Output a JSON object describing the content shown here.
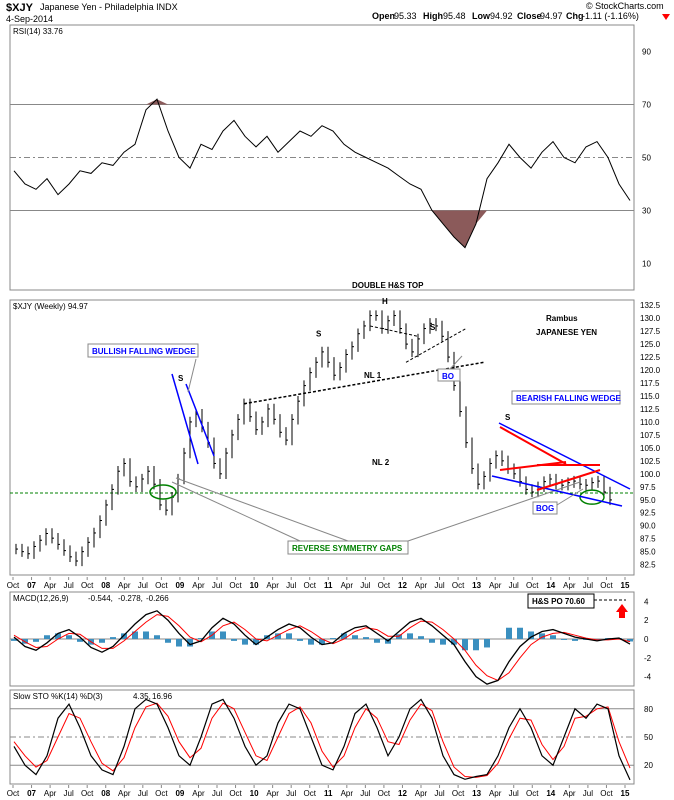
{
  "header": {
    "symbol": "$XJY",
    "name": "Japanese Yen - Philadelphia INDX",
    "date": "4-Sep-2014",
    "open_label": "Open",
    "open": "95.33",
    "high_label": "High",
    "high": "95.48",
    "low_label": "Low",
    "low": "94.92",
    "close_label": "Close",
    "close": "94.97",
    "chg_label": "Chg",
    "chg": "-1.11 (-1.16%)",
    "watermark": "© StockCharts.com"
  },
  "colors": {
    "price_bars": "#000000",
    "wedge_lines": "#0000ff",
    "triangle": "#ff0000",
    "gap_line": "#008000",
    "rsi_fill": "#8b5a5a",
    "macd_hist": "#3a8fbf",
    "signal": "#ff0000"
  },
  "chart_data": [
    {
      "type": "line",
      "title": "RSI(14) 33.76",
      "indicator": "RSI",
      "period": 14,
      "last": 33.76,
      "ylim": [
        0,
        100
      ],
      "yticks": [
        10,
        30,
        50,
        70,
        90
      ],
      "reference_lines": [
        30,
        50,
        70
      ],
      "shading": "below 30 and above 70",
      "series": [
        {
          "values": [
            45,
            40,
            38,
            42,
            36,
            40,
            45,
            44,
            48,
            47,
            52,
            55,
            68,
            72,
            60,
            50,
            46,
            55,
            53,
            60,
            64,
            58,
            54,
            58,
            52,
            56,
            60,
            58,
            62,
            60,
            55,
            52,
            50,
            48,
            46,
            43,
            40,
            38,
            30,
            25,
            20,
            16,
            25,
            42,
            48,
            55,
            50,
            46,
            52,
            56,
            50,
            48,
            54,
            56,
            50,
            40,
            33.76
          ]
        }
      ]
    },
    {
      "type": "bar",
      "subtype": "ohlc",
      "title": "$XJY (Weekly) 94.97",
      "xlabel": "",
      "ylabel": "",
      "x_ticks": [
        "Oct",
        "07",
        "Apr",
        "Jul",
        "Oct",
        "08",
        "Apr",
        "Jul",
        "Oct",
        "09",
        "Apr",
        "Jul",
        "Oct",
        "10",
        "Apr",
        "Jul",
        "Oct",
        "11",
        "Apr",
        "Jul",
        "Oct",
        "12",
        "Apr",
        "Jul",
        "Oct",
        "13",
        "Apr",
        "Jul",
        "Oct",
        "14",
        "Apr",
        "Jul",
        "Oct",
        "15"
      ],
      "ylim": [
        80.5,
        133.5
      ],
      "yticks": [
        82.5,
        85.0,
        87.5,
        90.0,
        92.5,
        95.0,
        97.5,
        100.0,
        102.5,
        105.0,
        107.5,
        110.0,
        112.5,
        115.0,
        117.5,
        120.0,
        122.5,
        125.0,
        127.5,
        130.0,
        132.5
      ],
      "series": [
        {
          "name": "$XJY",
          "values": [
            85.5,
            85.0,
            84.6,
            86.0,
            87.2,
            88.5,
            87.6,
            86.4,
            85.2,
            84.0,
            83.2,
            85.0,
            86.8,
            88.6,
            91.0,
            94.0,
            97.0,
            100.5,
            102.0,
            98.5,
            97.5,
            99.0,
            100.5,
            98.0,
            94.0,
            93.0,
            95.5,
            99.0,
            104.0,
            110.0,
            111.5,
            109.0,
            106.0,
            102.0,
            100.0,
            104.0,
            107.5,
            110.5,
            113.5,
            111.0,
            108.5,
            110.0,
            112.5,
            110.5,
            108.0,
            106.5,
            110.5,
            114.0,
            117.0,
            119.5,
            121.5,
            123.5,
            121.5,
            119.0,
            120.5,
            123.0,
            124.5,
            127.0,
            128.5,
            130.5,
            130.5,
            128.0,
            129.5,
            130.5,
            128.0,
            125.0,
            123.5,
            126.0,
            128.0,
            129.0,
            128.5,
            126.5,
            122.5,
            117.0,
            112.0,
            106.0,
            101.0,
            98.0,
            99.5,
            102.0,
            103.5,
            102.5,
            101.0,
            100.0,
            98.5,
            97.0,
            96.5,
            97.5,
            98.5,
            99.0,
            98.0,
            97.8,
            98.3,
            98.6,
            98.0,
            97.8,
            98.3,
            98.6,
            96.5,
            94.97
          ]
        }
      ],
      "annotations": {
        "double_hs_top": "DOUBLE H&S TOP",
        "shoulder_left": "S",
        "head": "H",
        "shoulder_right": "S",
        "neckline1": "NL 1",
        "neckline2": "NL 2",
        "bullish_wedge": "BULLISH FALLING WEDGE",
        "bearish_wedge": "BEARISH FALLING WEDGE",
        "wedge_s": "S",
        "small_s": "S",
        "bo": "BO",
        "bog": "BOG",
        "rsg": "REVERSE SYMMETRY GAPS",
        "rambus": "Rambus",
        "japanese_yen": "JAPANESE YEN"
      },
      "gap_level": 96.3
    },
    {
      "type": "line",
      "title": "MACD(12,26,9)",
      "indicator": "MACD",
      "macd": -0.544,
      "signal": -0.278,
      "histogram": -0.266,
      "macd_label": "-0.544,",
      "signal_label": "-0.278,",
      "hist_label": "-0.266",
      "ylim": [
        -5,
        5
      ],
      "yticks": [
        -4,
        -2,
        0,
        2,
        4
      ],
      "callout": "H&S PO 70.60",
      "series": [
        {
          "name": "MACD",
          "values": [
            0.2,
            -0.8,
            -1.2,
            -0.4,
            0.6,
            1.0,
            0.2,
            -0.9,
            -1.4,
            -0.8,
            0.4,
            1.6,
            2.6,
            3.0,
            2.0,
            0.6,
            -0.6,
            -0.2,
            1.2,
            2.2,
            1.6,
            0.4,
            -0.6,
            0.2,
            1.0,
            1.6,
            1.2,
            0.2,
            -0.6,
            -0.4,
            0.6,
            1.2,
            1.4,
            0.6,
            -0.2,
            0.8,
            1.8,
            2.2,
            1.4,
            0.4,
            -0.6,
            -2.4,
            -4.0,
            -4.8,
            -4.4,
            -2.4,
            -0.8,
            0.2,
            0.8,
            1.0,
            0.6,
            0.2,
            0.0,
            -0.2,
            0.0,
            0.1,
            -0.544
          ]
        },
        {
          "name": "Signal",
          "values": [
            0.4,
            -0.3,
            -0.9,
            -0.8,
            0.0,
            0.6,
            0.5,
            -0.3,
            -1.0,
            -1.0,
            -0.2,
            0.8,
            1.8,
            2.6,
            2.4,
            1.4,
            0.2,
            -0.3,
            0.4,
            1.4,
            1.8,
            1.0,
            0.0,
            -0.2,
            0.4,
            1.0,
            1.4,
            0.8,
            0.0,
            -0.5,
            0.0,
            0.8,
            1.2,
            1.0,
            0.3,
            0.3,
            1.2,
            1.9,
            1.8,
            1.0,
            0.0,
            -1.2,
            -2.8,
            -3.9,
            -4.4,
            -3.6,
            -2.0,
            -0.6,
            0.2,
            0.6,
            0.7,
            0.4,
            0.1,
            -0.1,
            -0.1,
            0.0,
            -0.278
          ]
        }
      ]
    },
    {
      "type": "line",
      "title": "Slow STO %K(14) %D(3)",
      "indicator": "Slow Stochastic",
      "k": 4.35,
      "d": 16.96,
      "k_label": "4.35,",
      "d_label": "16.96",
      "ylim": [
        0,
        100
      ],
      "yticks": [
        20,
        50,
        80
      ],
      "reference_lines": [
        20,
        50,
        80
      ],
      "series": [
        {
          "name": "%K",
          "values": [
            40,
            20,
            10,
            30,
            70,
            85,
            60,
            30,
            15,
            10,
            40,
            80,
            90,
            85,
            60,
            30,
            20,
            50,
            85,
            90,
            70,
            40,
            20,
            30,
            65,
            85,
            80,
            50,
            20,
            15,
            40,
            75,
            85,
            60,
            30,
            50,
            80,
            90,
            70,
            30,
            10,
            5,
            8,
            10,
            30,
            60,
            80,
            60,
            30,
            20,
            50,
            80,
            70,
            85,
            80,
            30,
            4.35
          ]
        },
        {
          "name": "%D",
          "values": [
            45,
            30,
            18,
            25,
            50,
            75,
            70,
            45,
            22,
            14,
            28,
            60,
            82,
            86,
            72,
            45,
            28,
            38,
            70,
            86,
            80,
            55,
            30,
            25,
            50,
            75,
            82,
            65,
            35,
            18,
            30,
            60,
            80,
            70,
            45,
            42,
            68,
            85,
            78,
            45,
            18,
            8,
            7,
            9,
            22,
            48,
            70,
            68,
            42,
            26,
            40,
            70,
            72,
            80,
            82,
            45,
            16.96
          ]
        }
      ]
    }
  ]
}
